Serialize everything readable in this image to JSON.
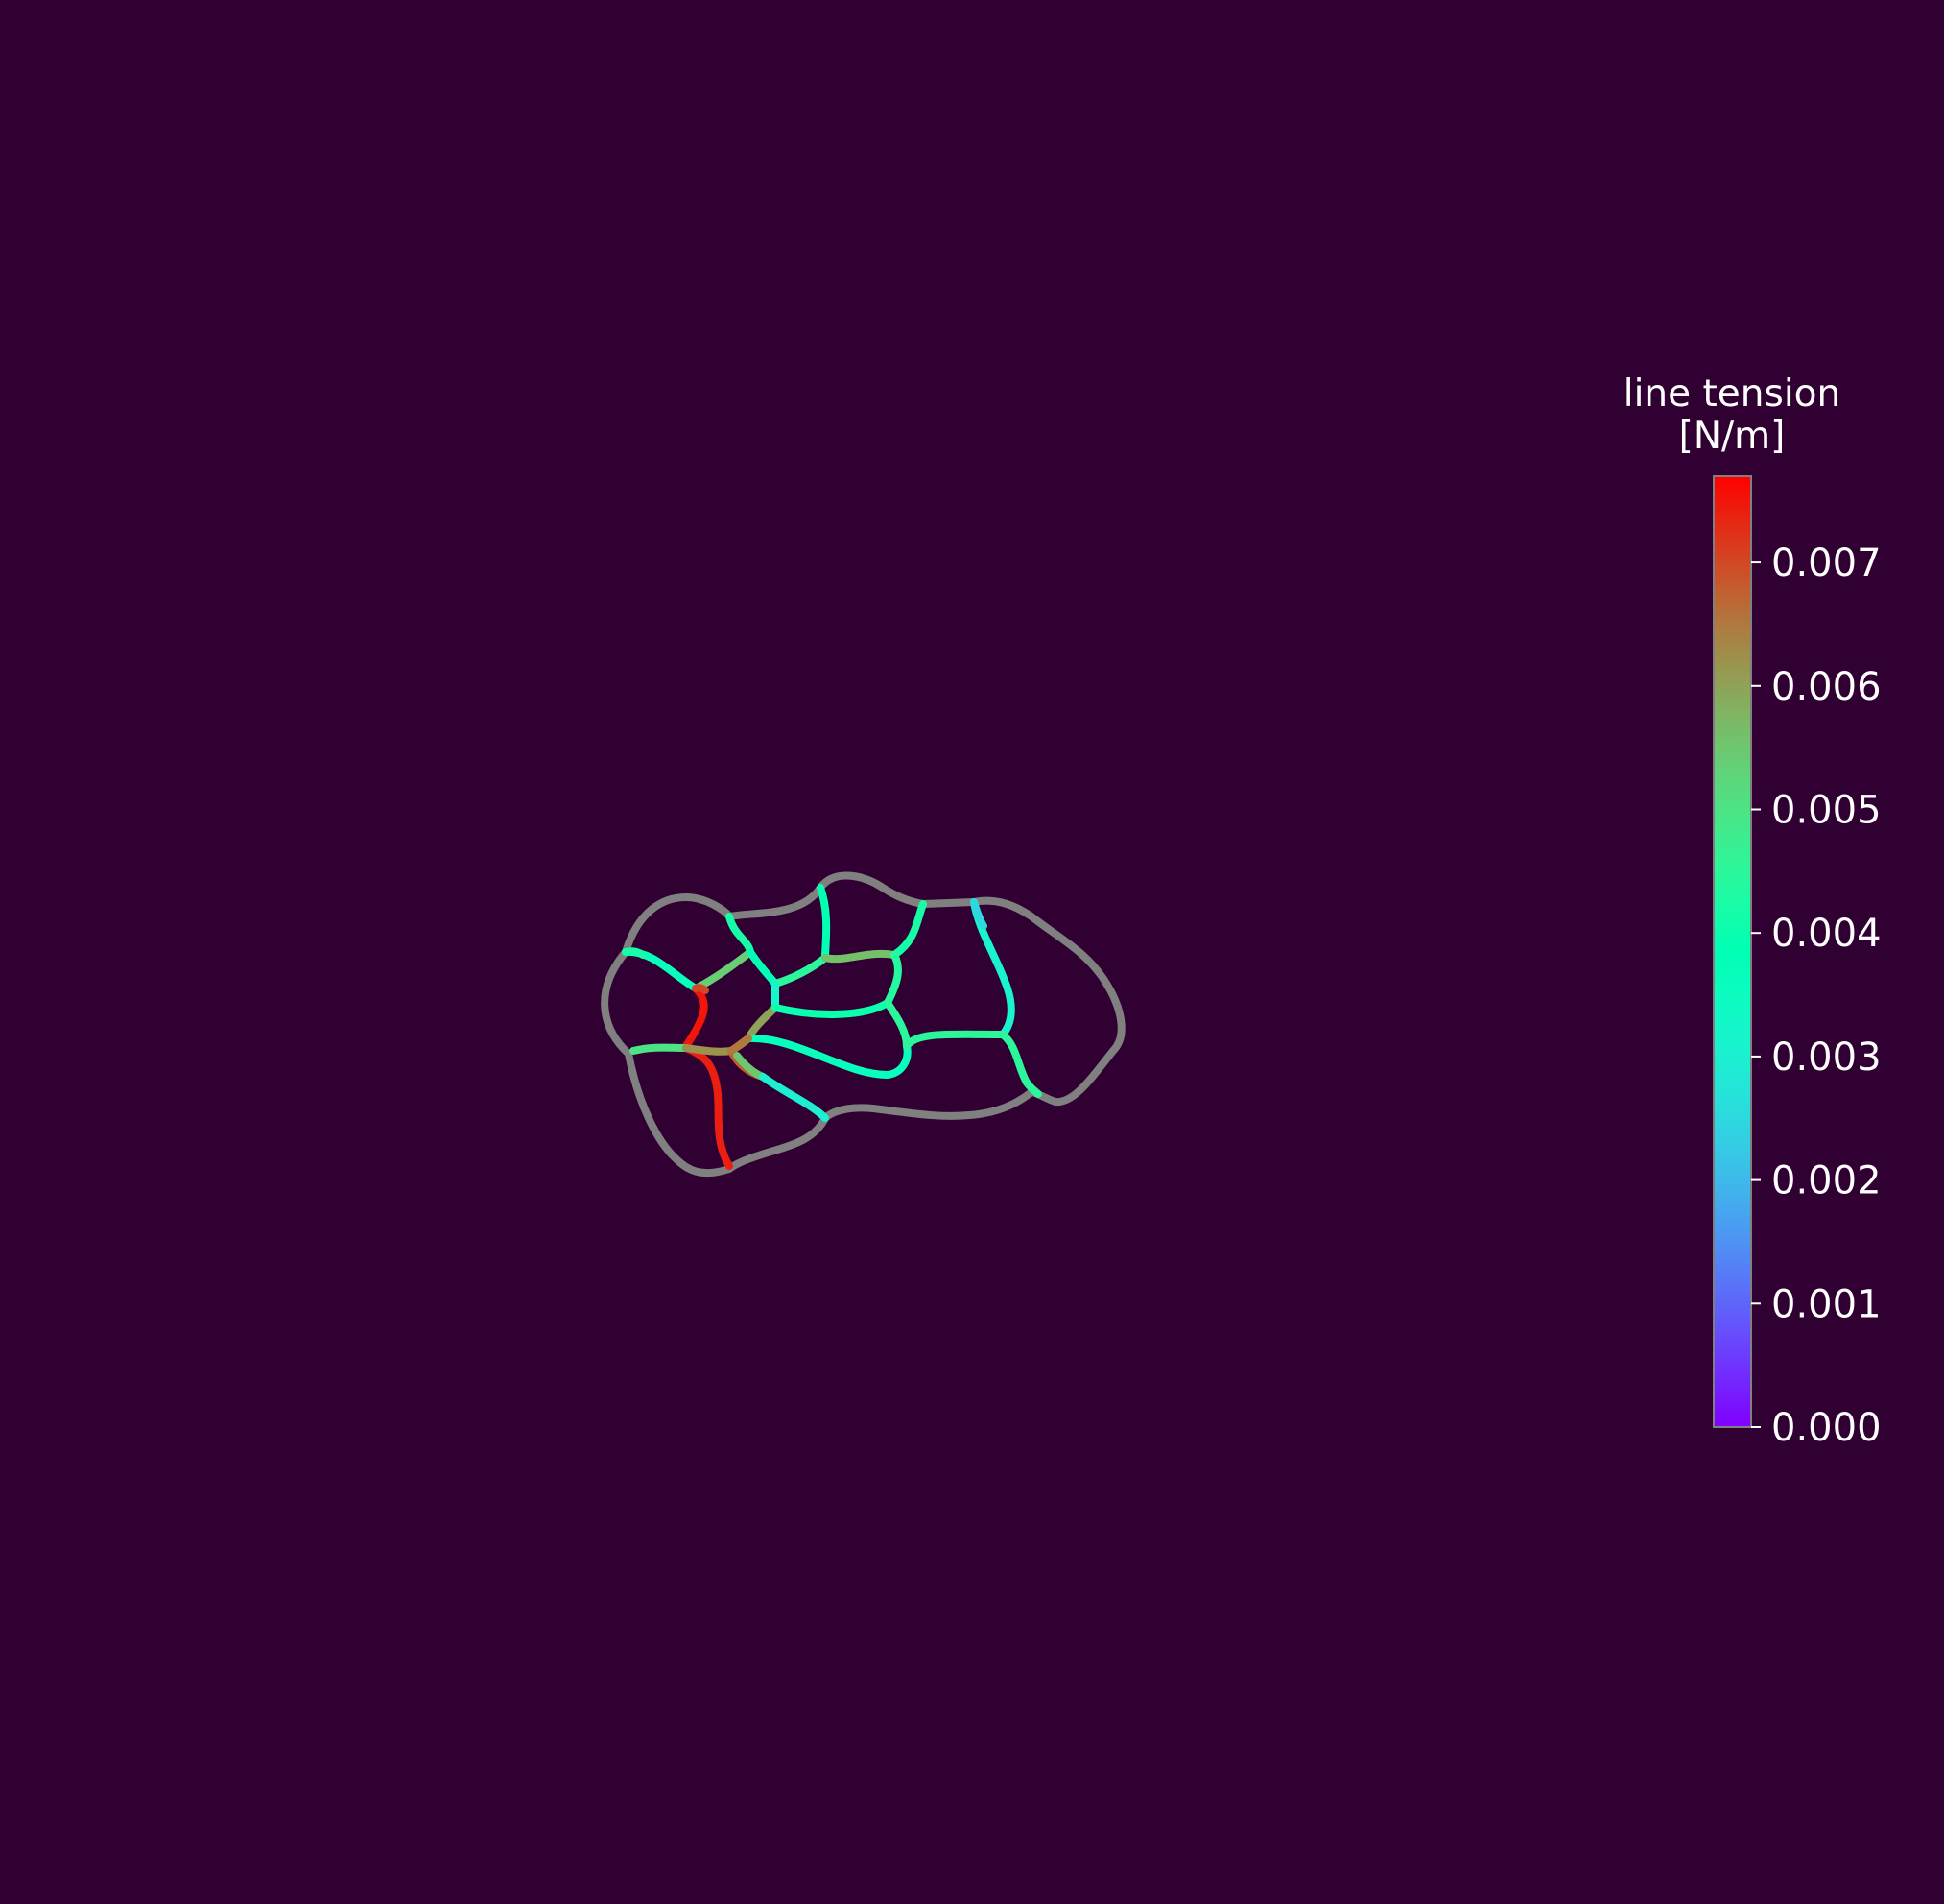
{
  "colors": {
    "background": "#300033",
    "boundary": "#808080",
    "text": "#ffffff"
  },
  "chart_data": {
    "type": "heatmap",
    "title": "",
    "xlabel": "",
    "ylabel": "",
    "colorbar": {
      "title_lines": [
        "line tension",
        "[N/m]"
      ],
      "vmin": 0.0,
      "vmax": 0.0077,
      "ticks": [
        0.0,
        0.001,
        0.002,
        0.003,
        0.004,
        0.005,
        0.006,
        0.007
      ],
      "tick_labels": [
        "0.000",
        "0.001",
        "0.002",
        "0.003",
        "0.004",
        "0.005",
        "0.006",
        "0.007"
      ],
      "colormap": "rainbow"
    },
    "edge_tensions": [
      0.0036,
      0.0054,
      0.0042,
      0.0038,
      0.0075,
      0.005,
      0.0074,
      0.0062,
      0.0045,
      0.0039,
      0.0032,
      0.006,
      0.0056,
      0.0042,
      0.004,
      0.0044,
      0.0045,
      0.006,
      0.0068,
      0.0055,
      0.0036,
      0.0065,
      0.003,
      0.0031,
      0.0045,
      0.0045,
      0.0025,
      0.0045,
      0.0042,
      0.007
    ]
  }
}
